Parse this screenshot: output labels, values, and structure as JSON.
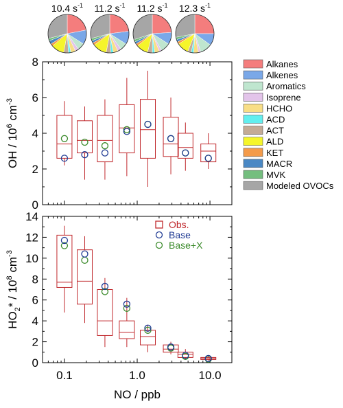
{
  "chart_data": [
    {
      "type": "pie",
      "id": "reactivity-pies",
      "pies": [
        {
          "label_value": "10.4",
          "label_unit": "s",
          "label_exp": "-1",
          "slices": [
            22,
            12,
            6,
            3,
            4,
            2,
            4,
            11,
            2,
            3,
            2,
            29
          ]
        },
        {
          "label_value": "11.2",
          "label_unit": "s",
          "label_exp": "-1",
          "slices": [
            23,
            11,
            6,
            3,
            4,
            2,
            4,
            12,
            2,
            2,
            2,
            29
          ]
        },
        {
          "label_value": "11.2",
          "label_unit": "s",
          "label_exp": "-1",
          "slices": [
            24,
            10,
            8,
            2,
            4,
            2,
            4,
            10,
            2,
            2,
            2,
            30
          ]
        },
        {
          "label_value": "12.3",
          "label_unit": "s",
          "label_exp": "-1",
          "slices": [
            25,
            10,
            10,
            2,
            4,
            2,
            3,
            10,
            2,
            2,
            2,
            28
          ]
        }
      ]
    },
    {
      "type": "box",
      "id": "oh-panel",
      "ylabel_prefix": "OH / 10",
      "ylabel_exp": "6",
      "ylabel_suffix": " cm",
      "ylabel_exp2": "-3",
      "ylim": [
        0,
        8
      ],
      "yticks": [
        "0",
        "2",
        "4",
        "6",
        "8"
      ],
      "xscale": "log",
      "xlim": [
        0.05,
        20
      ],
      "boxes": [
        {
          "x": 0.1,
          "whisker_low": 2.2,
          "q1": 2.6,
          "median": 3.4,
          "q3": 5.0,
          "whisker_high": 5.8,
          "base": 2.6,
          "base_x": 3.7
        },
        {
          "x": 0.19,
          "whisker_low": 1.4,
          "q1": 2.9,
          "median": 3.6,
          "q3": 4.7,
          "whisker_high": 5.5,
          "base": 2.8,
          "base_x": 3.5
        },
        {
          "x": 0.36,
          "whisker_low": 1.4,
          "q1": 2.4,
          "median": 3.6,
          "q3": 5.0,
          "whisker_high": 5.9,
          "base": 2.9,
          "base_x": 3.3
        },
        {
          "x": 0.72,
          "whisker_low": 1.6,
          "q1": 2.9,
          "median": 4.3,
          "q3": 5.6,
          "whisker_high": 7.1,
          "base": 4.1,
          "base_x": 4.2
        },
        {
          "x": 1.4,
          "whisker_low": 1.0,
          "q1": 2.6,
          "median": 4.2,
          "q3": 5.9,
          "whisker_high": 7.5,
          "base": 4.5,
          "base_x": 4.5
        },
        {
          "x": 2.9,
          "whisker_low": 1.7,
          "q1": 2.7,
          "median": 3.4,
          "q3": 4.9,
          "whisker_high": 6.0,
          "base": 3.7,
          "base_x": 3.7
        },
        {
          "x": 4.6,
          "whisker_low": 1.9,
          "q1": 2.6,
          "median": 3.2,
          "q3": 4.0,
          "whisker_high": 4.6,
          "base": 2.9,
          "base_x": 2.9
        },
        {
          "x": 9.5,
          "whisker_low": 2.0,
          "q1": 2.4,
          "median": 3.0,
          "q3": 3.4,
          "whisker_high": 4.0,
          "base": 2.6,
          "base_x": 2.6
        }
      ]
    },
    {
      "type": "box",
      "id": "ho2-panel",
      "ylabel_prefix": "HO",
      "ylabel_sub": "2",
      "ylabel_mid": "* / 10",
      "ylabel_exp": "8",
      "ylabel_suffix": " cm",
      "ylabel_exp2": "-3",
      "ylim": [
        0,
        14
      ],
      "yticks": [
        "0",
        "2",
        "4",
        "6",
        "8",
        "10",
        "12",
        "14"
      ],
      "xscale": "log",
      "xlim": [
        0.05,
        20
      ],
      "xticks": [
        {
          "value": 0.1,
          "label": "0.1"
        },
        {
          "value": 1.0,
          "label": "1.0"
        },
        {
          "value": 10.0,
          "label": "10.0"
        }
      ],
      "xlabel": "NO / ppb",
      "boxes": [
        {
          "x": 0.1,
          "whisker_low": 4.8,
          "q1": 7.2,
          "median": 7.7,
          "q3": 12.2,
          "whisker_high": 13.1,
          "base": 11.7,
          "base_x": 11.2
        },
        {
          "x": 0.19,
          "whisker_low": 3.8,
          "q1": 5.6,
          "median": 7.8,
          "q3": 10.8,
          "whisker_high": 12.1,
          "base": 10.4,
          "base_x": 9.8
        },
        {
          "x": 0.36,
          "whisker_low": 1.5,
          "q1": 2.6,
          "median": 4.0,
          "q3": 7.0,
          "whisker_high": 8.1,
          "base": 7.3,
          "base_x": 6.8
        },
        {
          "x": 0.72,
          "whisker_low": 1.5,
          "q1": 2.3,
          "median": 2.9,
          "q3": 4.0,
          "whisker_high": 6.2,
          "base": 5.6,
          "base_x": 5.2
        },
        {
          "x": 1.4,
          "whisker_low": 1.0,
          "q1": 1.7,
          "median": 2.5,
          "q3": 3.1,
          "whisker_high": 3.6,
          "base": 3.3,
          "base_x": 3.1
        },
        {
          "x": 2.9,
          "whisker_low": 0.8,
          "q1": 1.0,
          "median": 1.3,
          "q3": 1.7,
          "whisker_high": 2.0,
          "base": 1.5,
          "base_x": 1.4
        },
        {
          "x": 4.6,
          "whisker_low": 0.3,
          "q1": 0.5,
          "median": 0.8,
          "q3": 1.0,
          "whisker_high": 1.3,
          "base": 0.7,
          "base_x": 0.6
        },
        {
          "x": 9.5,
          "whisker_low": 0.2,
          "q1": 0.3,
          "median": 0.4,
          "q3": 0.5,
          "whisker_high": 0.7,
          "base": 0.4,
          "base_x": 0.35
        }
      ]
    }
  ],
  "legend_categories": [
    {
      "name": "Alkanes",
      "color": "#f47d7d"
    },
    {
      "name": "Alkenes",
      "color": "#7aa8e8"
    },
    {
      "name": "Aromatics",
      "color": "#bfe6cf"
    },
    {
      "name": "Isoprene",
      "color": "#e3c4ea"
    },
    {
      "name": "HCHO",
      "color": "#f8de86"
    },
    {
      "name": "ACD",
      "color": "#62efef"
    },
    {
      "name": "ACT",
      "color": "#c4ab96"
    },
    {
      "name": "ALD",
      "color": "#f5f52a"
    },
    {
      "name": "KET",
      "color": "#f49b4a"
    },
    {
      "name": "MACR",
      "color": "#4a88c4"
    },
    {
      "name": "MVK",
      "color": "#74be7e"
    },
    {
      "name": "Modeled OVOCs",
      "color": "#a6a6a6"
    }
  ],
  "legend_markers": [
    {
      "name": "Obs.",
      "marker": "square",
      "color": "#c0282c"
    },
    {
      "name": "Base",
      "marker": "circle",
      "color": "#1f3a93"
    },
    {
      "name": "Base+X",
      "marker": "circle",
      "color": "#3a8a2a"
    }
  ]
}
